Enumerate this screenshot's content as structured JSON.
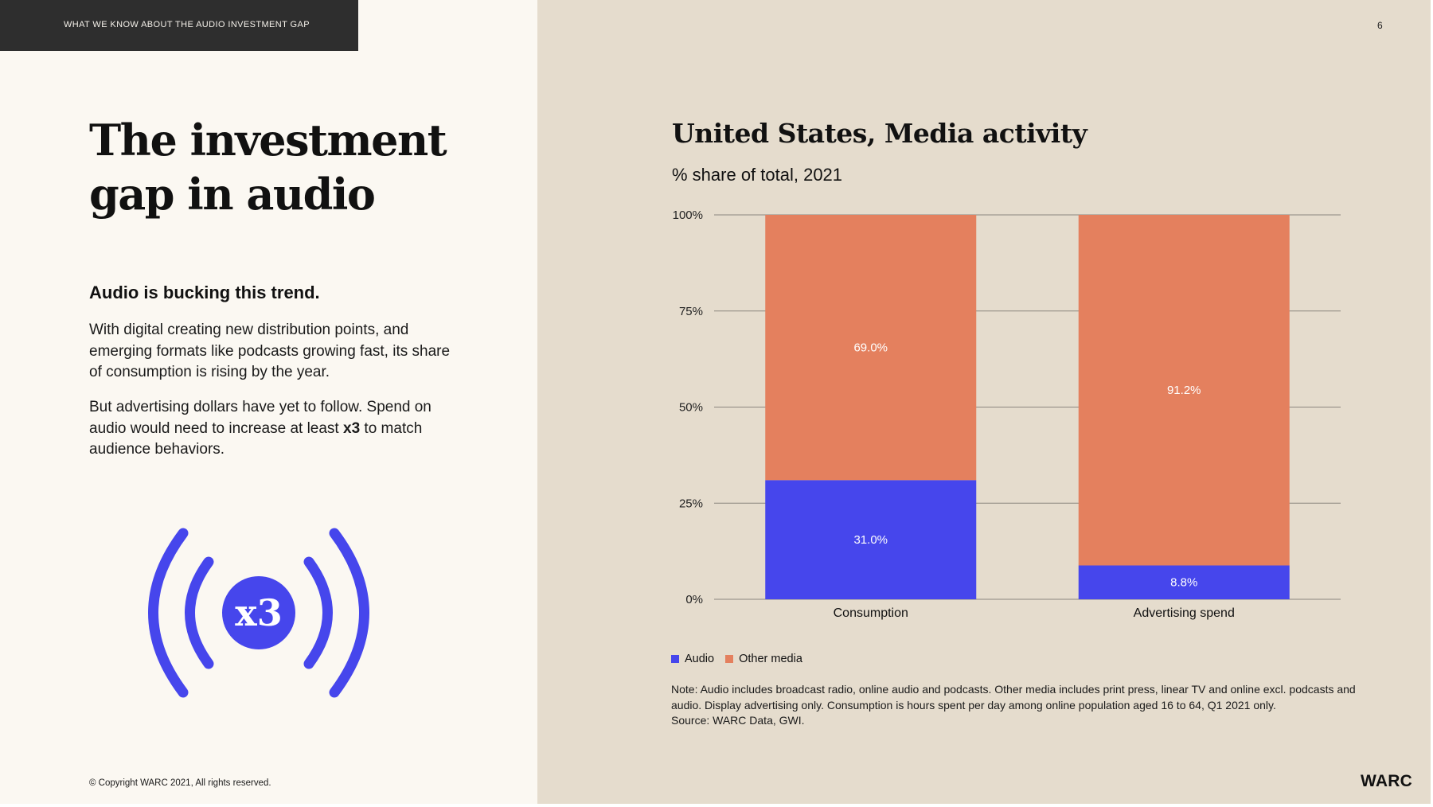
{
  "header": {
    "section_label": "WHAT WE KNOW ABOUT THE AUDIO INVESTMENT GAP",
    "page_number": "6"
  },
  "left": {
    "title": "The investment gap in audio",
    "subheading": "Audio is bucking this trend.",
    "paragraph1": "With digital creating new distribution points, and emerging formats like podcasts growing fast, its share of consumption is rising by the year.",
    "paragraph2": {
      "before": "But advertising dollars have yet to follow. Spend on audio would need to increase at least ",
      "bold": "x3",
      "after": " to match audience behaviors."
    },
    "graphic_label": "x3",
    "graphic_icon": "audio-broadcast-icon",
    "copyright": "© Copyright WARC 2021, All rights reserved."
  },
  "brand": {
    "logo_text": "WARC"
  },
  "colors": {
    "audio": "#4646ec",
    "other_media": "#e4805e",
    "left_bg": "#fbf8f2",
    "right_bg": "#e5dccd",
    "banner_bg": "#2e2e2e"
  },
  "chart_data": {
    "type": "bar",
    "stacked": true,
    "title": "United States, Media activity",
    "subtitle": "% share of total, 2021",
    "categories": [
      "Consumption",
      "Advertising spend"
    ],
    "series": [
      {
        "name": "Audio",
        "values": [
          31.0,
          8.8
        ],
        "labels": [
          "31.0%",
          "8.8%"
        ],
        "color": "#4646ec"
      },
      {
        "name": "Other media",
        "values": [
          69.0,
          91.2
        ],
        "labels": [
          "69.0%",
          "91.2%"
        ],
        "color": "#e4805e"
      }
    ],
    "ylim": [
      0,
      100
    ],
    "yticks": [
      0,
      25,
      50,
      75,
      100
    ],
    "ytick_labels": [
      "0%",
      "25%",
      "50%",
      "75%",
      "100%"
    ],
    "grid": true,
    "legend_position": "bottom-left"
  },
  "note": {
    "line1": "Note: Audio includes broadcast radio, online audio and podcasts. Other media includes print press, linear TV and online excl. podcasts and audio. Display advertising only. Consumption is hours spent per day among online population aged 16 to 64, Q1 2021 only.",
    "source": "Source: WARC Data, GWI."
  }
}
